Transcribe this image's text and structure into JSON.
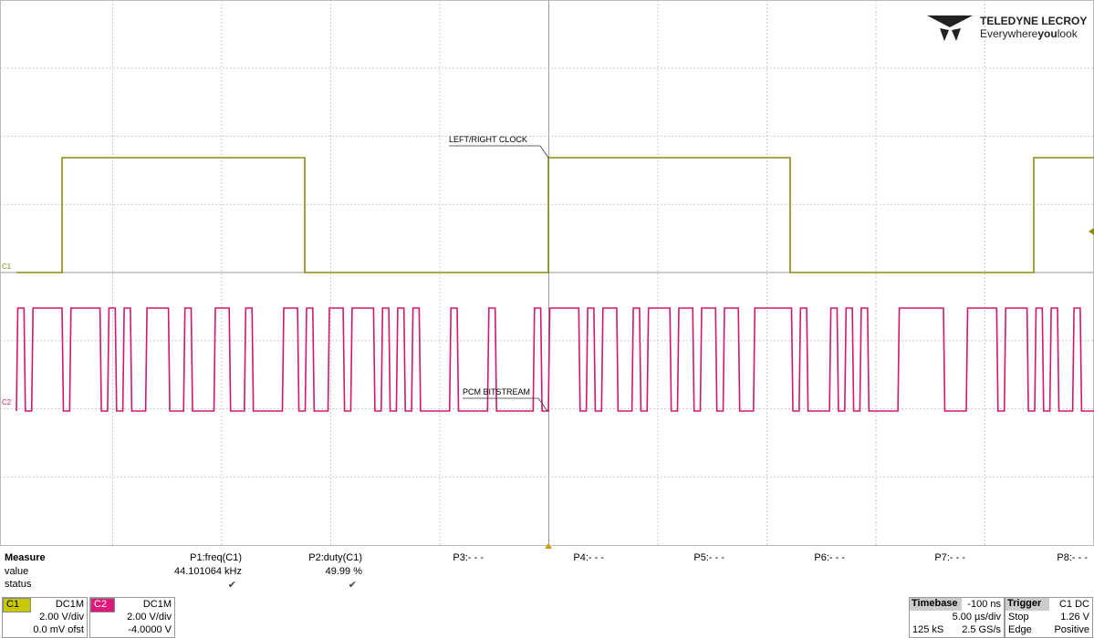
{
  "logo": {
    "brand": "TELEDYNE LECROY",
    "tagline_1": "Everywhere",
    "tagline_2": "you",
    "tagline_3": "look"
  },
  "annotations": [
    "LEFT/RIGHT CLOCK",
    "PCM BITSTREAM"
  ],
  "channel_markers": [
    "C1",
    "C2"
  ],
  "measure": {
    "headers": [
      "Measure",
      "P1:freq(C1)",
      "P2:duty(C1)",
      "P3:- - -",
      "P4:- - -",
      "P5:- - -",
      "P6:- - -",
      "P7:- - -",
      "P8:- - -"
    ],
    "rows": [
      {
        "label": "value",
        "cells": [
          "44.101064 kHz",
          "49.99 %"
        ]
      },
      {
        "label": "status",
        "cells": [
          "✔",
          "✔"
        ]
      }
    ]
  },
  "channels": [
    {
      "name": "C1",
      "coupling": "DC1M",
      "scale": "2.00 V/div",
      "offset": "0.0 mV ofst"
    },
    {
      "name": "C2",
      "coupling": "DC1M",
      "scale": "2.00 V/div",
      "offset": "-4.0000 V"
    }
  ],
  "timebase": {
    "title": "Timebase",
    "delay": "-100 ns",
    "scale": "5.00 µs/div",
    "samples": "125 kS",
    "rate": "2.5 GS/s"
  },
  "trigger": {
    "title": "Trigger",
    "source": "C1 DC",
    "mode": "Stop",
    "level": "1.26 V",
    "type": "Edge",
    "slope": "Positive"
  }
}
